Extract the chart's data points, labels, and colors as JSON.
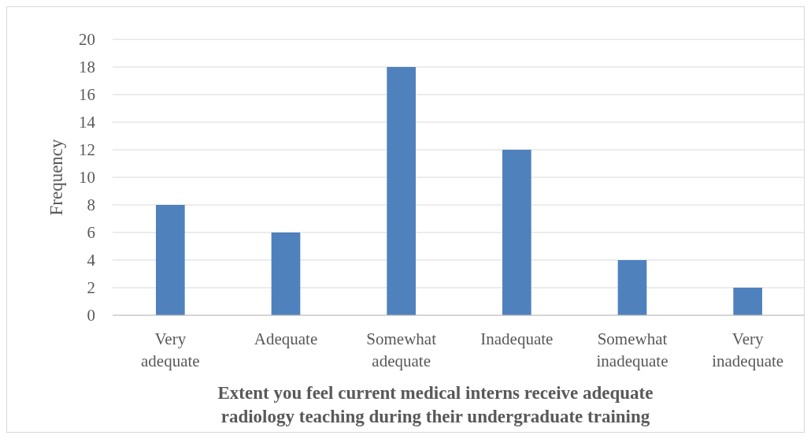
{
  "chart_data": {
    "type": "bar",
    "xlabel": "Extent you feel current medical interns receive adequate radiology teaching during their undergraduate training",
    "ylabel": "Frequency",
    "categories": [
      "Very adequate",
      "Adequate",
      "Somewhat adequate",
      "Inadequate",
      "Somewhat inadequate",
      "Very inadequate"
    ],
    "values": [
      8,
      6,
      18,
      12,
      4,
      2
    ],
    "color": "#4f81bd",
    "ylim": [
      0,
      20
    ],
    "yticks": [
      0,
      2,
      4,
      6,
      8,
      10,
      12,
      14,
      16,
      18,
      20
    ],
    "grid": "y"
  }
}
